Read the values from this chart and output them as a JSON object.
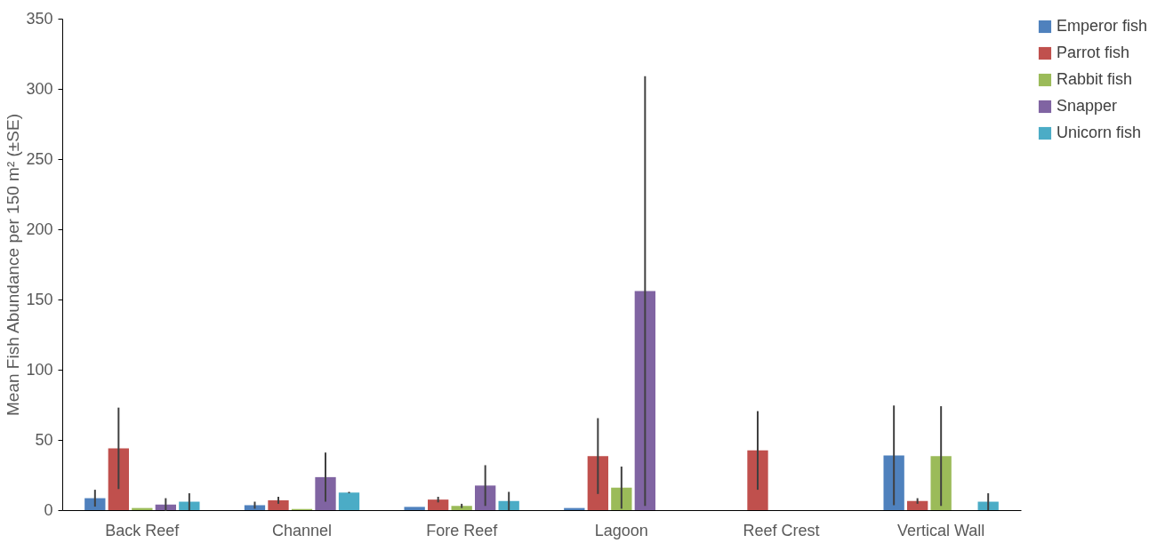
{
  "chart_data": {
    "type": "bar",
    "ylabel": "Mean Fish Abundance per 150 m² (±SE)",
    "categories": [
      "Back Reef",
      "Channel",
      "Fore Reef",
      "Lagoon",
      "Reef Crest",
      "Vertical Wall"
    ],
    "series": [
      {
        "name": "Emperor fish",
        "color": "#4f81bd",
        "values": [
          8.5,
          3.5,
          2.3,
          1.5,
          null,
          39
        ],
        "errors": [
          6,
          2.5,
          null,
          null,
          null,
          35.5
        ]
      },
      {
        "name": "Parrot fish",
        "color": "#c0504d",
        "values": [
          44,
          7,
          7.5,
          38.5,
          42.5,
          6.5
        ],
        "errors": [
          29,
          2.5,
          2,
          27,
          28,
          2
        ]
      },
      {
        "name": "Rabbit fish",
        "color": "#9bbb59",
        "values": [
          1.5,
          0.8,
          3,
          16,
          null,
          38.5
        ],
        "errors": [
          null,
          null,
          1.5,
          15,
          null,
          35.5
        ]
      },
      {
        "name": "Snapper",
        "color": "#8064a2",
        "values": [
          4,
          23.5,
          17.5,
          156,
          null,
          null
        ],
        "errors": [
          4.5,
          17.5,
          14.5,
          153,
          null,
          null
        ]
      },
      {
        "name": "Unicorn fish",
        "color": "#4bacc6",
        "values": [
          6,
          12.5,
          6.5,
          null,
          null,
          6
        ],
        "errors": [
          6,
          0.5,
          6.5,
          null,
          null,
          6
        ]
      }
    ],
    "ylim": [
      0,
      350
    ],
    "yticks": [
      0,
      50,
      100,
      150,
      200,
      250,
      300,
      350
    ],
    "grid": false,
    "legend": "top right"
  }
}
